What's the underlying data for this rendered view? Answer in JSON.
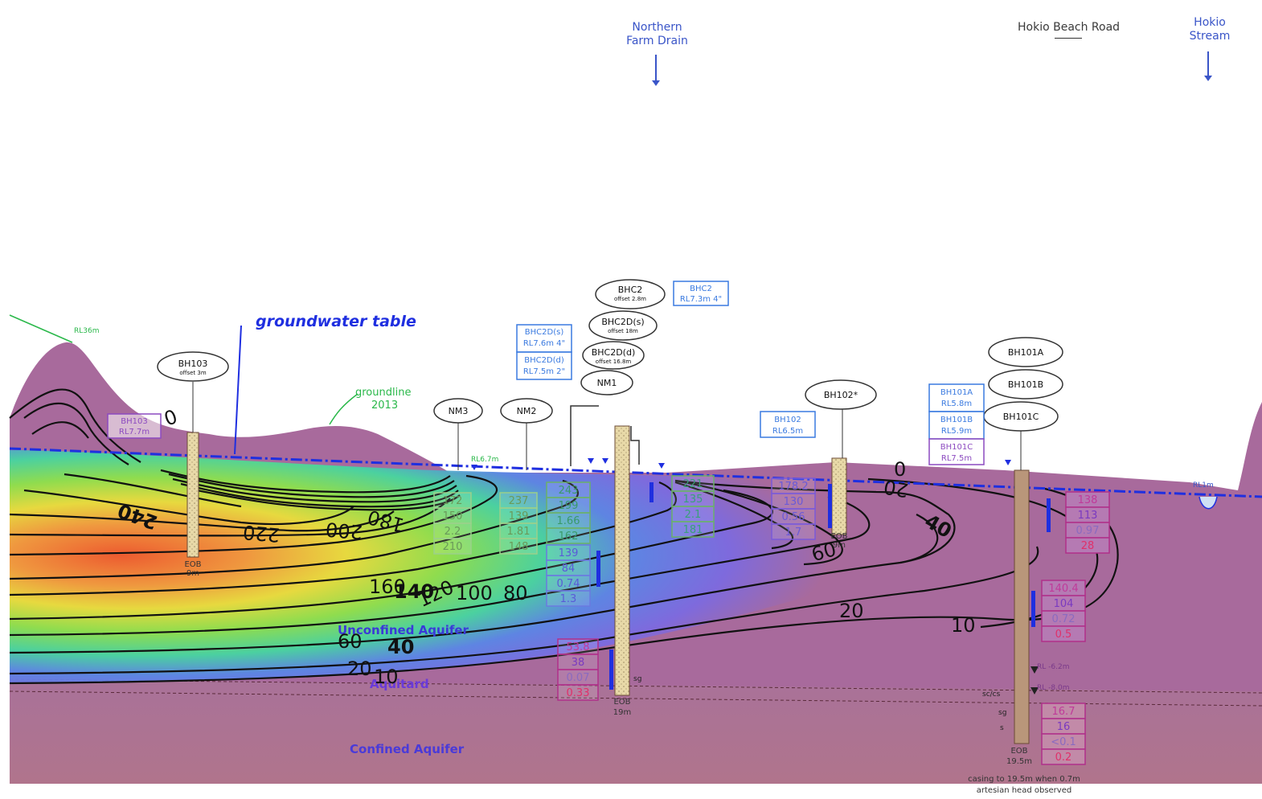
{
  "top_markers": {
    "drain": "Northern\nFarm Drain",
    "road": "Hokio Beach Road",
    "stream": "Hokio\nStream"
  },
  "annotations": {
    "groundwater_table": "groundwater table",
    "groundline": "groundline\n2013",
    "dune_level": "RL36m",
    "water_level_nm": "RL6.7m",
    "stream_level": "RL1m",
    "rl_minus_62": "RL -6.2m",
    "rl_minus_8": "RL -8.0m",
    "casing_note": "casing to 19.5m when 0.7m\nartesian head observed",
    "unconfined": "Unconfined Aquifer",
    "aquitard": "Aquitard",
    "confined": "Confined Aquifer",
    "soil_1": "sc/cs",
    "soil_2": "sg",
    "soil_3": "s",
    "eob_bhc2": "EOB\n19m",
    "eob_bh101": "EOB\n19.5m",
    "eob_bh102": "EOB\n9m",
    "eob_bh103": "EOB\n9m"
  },
  "wells": {
    "bh103": {
      "name": "BH103",
      "sub": "offset 3m",
      "rl_name": "BH103",
      "rl": "RL7.7m"
    },
    "nm3": "NM3",
    "nm2": "NM2",
    "nm1": "NM1",
    "bhc2": {
      "name": "BHC2",
      "sub": "offset 2.8m"
    },
    "bhc2ds": {
      "name": "BHC2D(s)",
      "sub": "offset 18m"
    },
    "bhc2dd": {
      "name": "BHC2D(d)",
      "sub": "offset 16.8m"
    },
    "bhc2_rl": {
      "name": "BHC2",
      "rl": "RL7.3m 4\""
    },
    "bhc2ds_rl": {
      "name": "BHC2D(s)",
      "rl": "RL7.6m 4\""
    },
    "bhc2dd_rl": {
      "name": "BHC2D(d)",
      "rl": "RL7.5m 2\""
    },
    "bh102": {
      "name": "BH102*",
      "rl_name": "BH102",
      "rl": "RL6.5m"
    },
    "bh101a": {
      "name": "BH101A",
      "rl_name": "BH101A",
      "rl": "RL5.8m"
    },
    "bh101b": {
      "name": "BH101B",
      "rl_name": "BH101B",
      "rl": "RL5.9m"
    },
    "bh101c": {
      "name": "BH101C",
      "rl_name": "BH101C",
      "rl": "RL7.5m"
    }
  },
  "contours": {
    "labels_left": [
      "0",
      "240",
      "220",
      "200",
      "180",
      "160",
      "140",
      "120",
      "100",
      "80",
      "60",
      "40",
      "20",
      "10"
    ],
    "labels_right": [
      "0",
      "20",
      "40",
      "60",
      "20",
      "10"
    ]
  },
  "data_boxes": {
    "nm3": [
      "172",
      "150",
      "2.2",
      "210"
    ],
    "nm2": [
      "237",
      "139",
      "1.81",
      "148"
    ],
    "nm1_upper": [
      "243",
      "199",
      "1.66",
      "162"
    ],
    "nm1_lower": [
      "139",
      "84",
      "0.74",
      "1.3"
    ],
    "bhc2": [
      "53.8",
      "38",
      "0.07",
      "0.33"
    ],
    "bhc2ds": [
      "221",
      "135",
      "2.1",
      "181"
    ],
    "bh102": [
      "178.2",
      "130",
      "0.56",
      "1.7"
    ],
    "bh101a": [
      "138",
      "113",
      "0.97",
      "28"
    ],
    "bh101b": [
      "140.4",
      "104",
      "0.72",
      "0.5"
    ],
    "bh101c": [
      "16.7",
      "16",
      "<0.1",
      "0.2"
    ]
  },
  "colors": {
    "sky": "#ffffff",
    "ground_purple": "#a86a9c",
    "confined": "#a86f92",
    "water_line": "#1f2fe0",
    "label_blue": "#3a55c8",
    "plume_core": "#f26a2a"
  }
}
